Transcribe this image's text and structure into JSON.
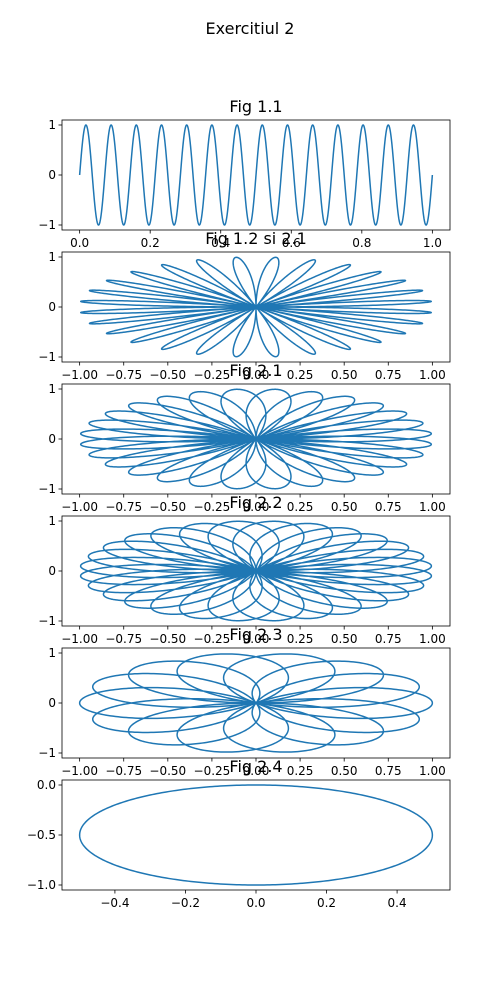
{
  "figure": {
    "title": "Exercitiul 2"
  },
  "colors": {
    "line": "#1f77b4"
  },
  "chart_data": [
    {
      "type": "line",
      "title": "Fig 1.1",
      "curve": "sine",
      "frequency": 14,
      "amplitude": 1,
      "xlim": [
        -0.05,
        1.05
      ],
      "ylim": [
        -1.1,
        1.1
      ],
      "xticks": [
        0,
        0.2,
        0.4,
        0.6,
        0.8,
        1
      ],
      "xticklabels": [
        "0.0",
        "0.2",
        "0.4",
        "0.6",
        "0.8",
        "1.0"
      ],
      "yticks": [
        -1,
        0,
        1
      ],
      "yticklabels": [
        "−1",
        "0",
        "1"
      ]
    },
    {
      "type": "line",
      "title": "Fig 1.2 si 2.1",
      "curve": "complex_winding",
      "signal_frequency": 14,
      "winding_frequency": 1,
      "xlim": [
        -1.1,
        1.1
      ],
      "ylim": [
        -1.1,
        1.1
      ],
      "xticks": [
        -1,
        -0.75,
        -0.5,
        -0.25,
        0,
        0.25,
        0.5,
        0.75,
        1
      ],
      "xticklabels": [
        "−1.00",
        "−0.75",
        "−0.50",
        "−0.25",
        "0.00",
        "0.25",
        "0.50",
        "0.75",
        "1.00"
      ],
      "yticks": [
        -1,
        0,
        1
      ],
      "yticklabels": [
        "−1",
        "0",
        "1"
      ]
    },
    {
      "type": "line",
      "title": "Fig 2.1",
      "curve": "complex_winding",
      "signal_frequency": 14,
      "winding_frequency": 3,
      "xlim": [
        -1.1,
        1.1
      ],
      "ylim": [
        -1.1,
        1.1
      ],
      "xticks": [
        -1,
        -0.75,
        -0.5,
        -0.25,
        0,
        0.25,
        0.5,
        0.75,
        1
      ],
      "xticklabels": [
        "−1.00",
        "−0.75",
        "−0.50",
        "−0.25",
        "0.00",
        "0.25",
        "0.50",
        "0.75",
        "1.00"
      ],
      "yticks": [
        -1,
        0,
        1
      ],
      "yticklabels": [
        "−1",
        "0",
        "1"
      ]
    },
    {
      "type": "line",
      "title": "Fig 2.2",
      "curve": "complex_winding",
      "signal_frequency": 14,
      "winding_frequency": 5,
      "xlim": [
        -1.1,
        1.1
      ],
      "ylim": [
        -1.1,
        1.1
      ],
      "xticks": [
        -1,
        -0.75,
        -0.5,
        -0.25,
        0,
        0.25,
        0.5,
        0.75,
        1
      ],
      "xticklabels": [
        "−1.00",
        "−0.75",
        "−0.50",
        "−0.25",
        "0.00",
        "0.25",
        "0.50",
        "0.75",
        "1.00"
      ],
      "yticks": [
        -1,
        0,
        1
      ],
      "yticklabels": [
        "−1",
        "0",
        "1"
      ]
    },
    {
      "type": "line",
      "title": "Fig 2.3",
      "curve": "complex_winding",
      "signal_frequency": 14,
      "winding_frequency": 8,
      "xlim": [
        -1.1,
        1.1
      ],
      "ylim": [
        -1.1,
        1.1
      ],
      "xticks": [
        -1,
        -0.75,
        -0.5,
        -0.25,
        0,
        0.25,
        0.5,
        0.75,
        1
      ],
      "xticklabels": [
        "−1.00",
        "−0.75",
        "−0.50",
        "−0.25",
        "0.00",
        "0.25",
        "0.50",
        "0.75",
        "1.00"
      ],
      "yticks": [
        -1,
        0,
        1
      ],
      "yticklabels": [
        "−1",
        "0",
        "1"
      ]
    },
    {
      "type": "line",
      "title": "Fig 2.4",
      "curve": "ellipse",
      "center": [
        0,
        -0.5
      ],
      "radius": [
        0.5,
        0.5
      ],
      "xlim": [
        -0.55,
        0.55
      ],
      "ylim": [
        -1.05,
        0.05
      ],
      "xticks": [
        -0.4,
        -0.2,
        0,
        0.2,
        0.4
      ],
      "xticklabels": [
        "−0.4",
        "−0.2",
        "0.0",
        "0.2",
        "0.4"
      ],
      "yticks": [
        -1,
        -0.5,
        0
      ],
      "yticklabels": [
        "−1.0",
        "−0.5",
        "0.0"
      ]
    }
  ]
}
